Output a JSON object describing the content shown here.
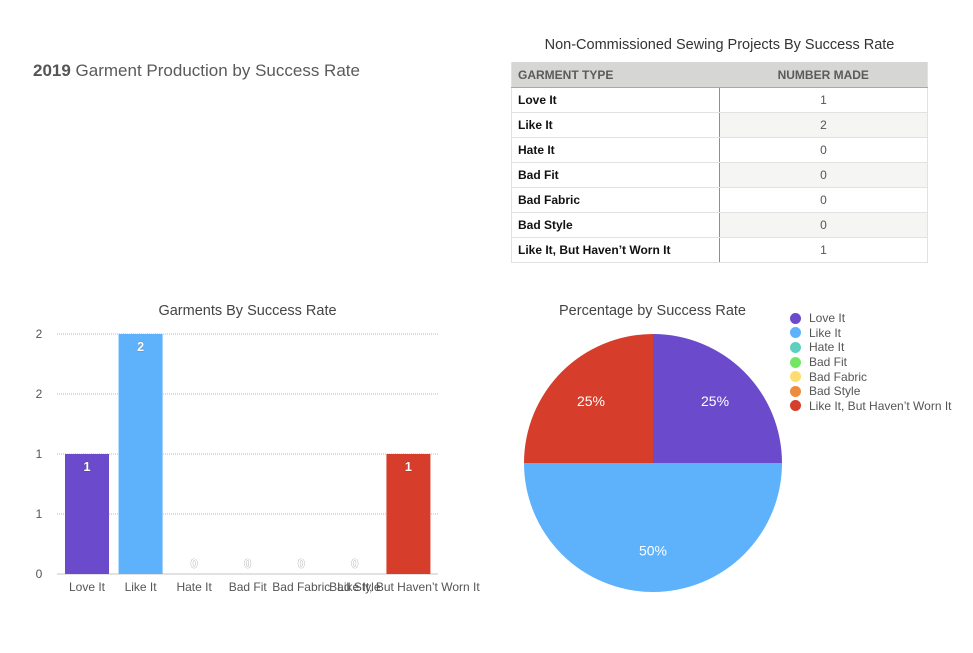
{
  "page": {
    "title_year": "2019",
    "title_rest": " Garment Production by Success Rate"
  },
  "table": {
    "title": "Non-Commissioned Sewing Projects By Success Rate",
    "headers": [
      "GARMENT TYPE",
      "NUMBER MADE"
    ],
    "rows": [
      {
        "type": "Love It",
        "count": "1"
      },
      {
        "type": "Like It",
        "count": "2"
      },
      {
        "type": "Hate It",
        "count": "0"
      },
      {
        "type": "Bad Fit",
        "count": "0"
      },
      {
        "type": "Bad Fabric",
        "count": "0"
      },
      {
        "type": "Bad Style",
        "count": "0"
      },
      {
        "type": "Like It, But Haven’t Worn It",
        "count": "1"
      }
    ]
  },
  "colors": {
    "Love It": "#6b4bcb",
    "Like It": "#5eb1fb",
    "Hate It": "#5ed0c0",
    "Bad Fit": "#73e765",
    "Bad Fabric": "#fddc70",
    "Bad Style": "#ef8a3e",
    "Like It, But Haven’t Worn It": "#d63d2a"
  },
  "chart_data": [
    {
      "type": "bar",
      "title": "Garments By Success Rate",
      "categories": [
        "Love It",
        "Like It",
        "Hate It",
        "Bad Fit",
        "Bad Fabric",
        "Bad Style",
        "Like It, But Haven’t Worn It"
      ],
      "values": [
        1,
        2,
        0,
        0,
        0,
        0,
        1
      ],
      "data_labels": [
        "1",
        "2",
        "0",
        "0",
        "0",
        "0",
        "1"
      ],
      "ylim": [
        0,
        2
      ],
      "yticks": [
        0,
        0.5,
        1,
        1.5,
        2
      ],
      "ytick_labels": [
        "0",
        "1",
        "1",
        "2",
        "2"
      ],
      "xlabel": "",
      "ylabel": "",
      "grid": true
    },
    {
      "type": "pie",
      "title": "Percentage by Success Rate",
      "labels": [
        "Love It",
        "Like It",
        "Hate It",
        "Bad Fit",
        "Bad Fabric",
        "Bad Style",
        "Like It, But Haven’t Worn It"
      ],
      "values": [
        1,
        2,
        0,
        0,
        0,
        0,
        1
      ],
      "percent_labels": [
        "25%",
        "50%",
        "",
        "",
        "",
        "",
        "25%"
      ],
      "legend": "right"
    }
  ]
}
